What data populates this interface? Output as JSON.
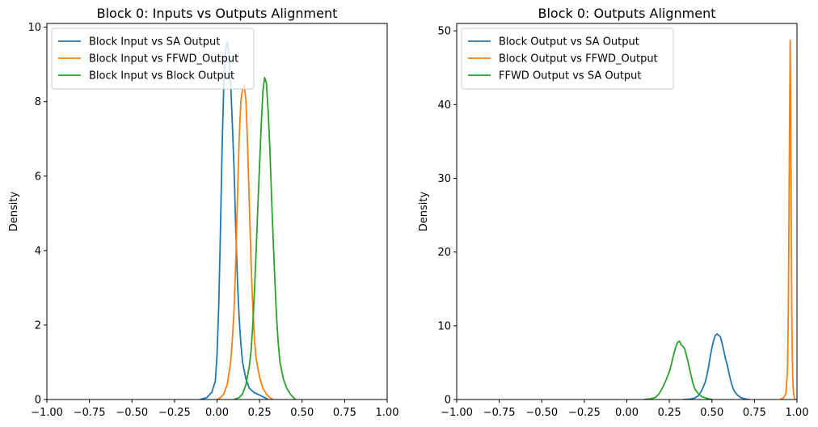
{
  "chart_data": [
    {
      "type": "line",
      "subtype": "kde-density",
      "title": "Block 0: Inputs vs Outputs Alignment",
      "xlabel": "",
      "ylabel": "Density",
      "xlim": [
        -1.0,
        1.0
      ],
      "ylim": [
        0,
        10.1
      ],
      "xticks": [
        "−1.00",
        "−0.75",
        "−0.50",
        "−0.25",
        "0.00",
        "0.25",
        "0.50",
        "0.75",
        "1.00"
      ],
      "xtick_values": [
        -1.0,
        -0.75,
        -0.5,
        -0.25,
        0.0,
        0.25,
        0.5,
        0.75,
        1.0
      ],
      "yticks": [
        "0",
        "2",
        "4",
        "6",
        "8",
        "10"
      ],
      "ytick_values": [
        0,
        2,
        4,
        6,
        8,
        10
      ],
      "grid": false,
      "legend_position": "top-left",
      "series": [
        {
          "name": "Block Input vs SA Output",
          "color": "#1f77b4",
          "points": [
            [
              -0.1,
              0
            ],
            [
              -0.06,
              0.05
            ],
            [
              -0.03,
              0.2
            ],
            [
              -0.01,
              0.5
            ],
            [
              0.0,
              1.2
            ],
            [
              0.01,
              2.5
            ],
            [
              0.02,
              4.5
            ],
            [
              0.03,
              6.8
            ],
            [
              0.04,
              8.5
            ],
            [
              0.05,
              9.4
            ],
            [
              0.06,
              9.6
            ],
            [
              0.07,
              9.3
            ],
            [
              0.08,
              8.5
            ],
            [
              0.09,
              7.4
            ],
            [
              0.1,
              6.2
            ],
            [
              0.11,
              4.6
            ],
            [
              0.12,
              3.2
            ],
            [
              0.13,
              2.2
            ],
            [
              0.14,
              1.5
            ],
            [
              0.15,
              1.0
            ],
            [
              0.17,
              0.55
            ],
            [
              0.19,
              0.3
            ],
            [
              0.22,
              0.18
            ],
            [
              0.25,
              0.12
            ],
            [
              0.28,
              0.05
            ],
            [
              0.3,
              0
            ]
          ]
        },
        {
          "name": "Block Input vs FFWD_Output",
          "color": "#ff7f0e",
          "points": [
            [
              0.0,
              0
            ],
            [
              0.02,
              0.05
            ],
            [
              0.04,
              0.15
            ],
            [
              0.06,
              0.4
            ],
            [
              0.08,
              1.0
            ],
            [
              0.09,
              1.6
            ],
            [
              0.1,
              2.4
            ],
            [
              0.11,
              3.7
            ],
            [
              0.12,
              5.4
            ],
            [
              0.13,
              7.0
            ],
            [
              0.14,
              8.0
            ],
            [
              0.15,
              8.35
            ],
            [
              0.16,
              8.45
            ],
            [
              0.17,
              8.0
            ],
            [
              0.18,
              6.8
            ],
            [
              0.19,
              5.2
            ],
            [
              0.2,
              3.7
            ],
            [
              0.21,
              2.5
            ],
            [
              0.22,
              1.6
            ],
            [
              0.23,
              1.1
            ],
            [
              0.25,
              0.6
            ],
            [
              0.27,
              0.3
            ],
            [
              0.29,
              0.15
            ],
            [
              0.31,
              0.05
            ],
            [
              0.33,
              0
            ]
          ]
        },
        {
          "name": "Block Input vs Block Output",
          "color": "#2ca02c",
          "points": [
            [
              0.1,
              0
            ],
            [
              0.13,
              0.05
            ],
            [
              0.15,
              0.15
            ],
            [
              0.17,
              0.4
            ],
            [
              0.19,
              0.9
            ],
            [
              0.2,
              1.3
            ],
            [
              0.21,
              2.0
            ],
            [
              0.22,
              2.9
            ],
            [
              0.23,
              4.0
            ],
            [
              0.24,
              5.2
            ],
            [
              0.25,
              6.3
            ],
            [
              0.26,
              7.4
            ],
            [
              0.27,
              8.3
            ],
            [
              0.28,
              8.65
            ],
            [
              0.29,
              8.5
            ],
            [
              0.3,
              7.8
            ],
            [
              0.31,
              6.8
            ],
            [
              0.32,
              5.5
            ],
            [
              0.33,
              4.3
            ],
            [
              0.34,
              3.2
            ],
            [
              0.35,
              2.2
            ],
            [
              0.36,
              1.5
            ],
            [
              0.37,
              1.0
            ],
            [
              0.39,
              0.55
            ],
            [
              0.41,
              0.3
            ],
            [
              0.43,
              0.15
            ],
            [
              0.45,
              0.05
            ],
            [
              0.46,
              0
            ]
          ]
        }
      ]
    },
    {
      "type": "line",
      "subtype": "kde-density",
      "title": "Block 0: Outputs Alignment",
      "xlabel": "",
      "ylabel": "Density",
      "xlim": [
        -1.0,
        1.0
      ],
      "ylim": [
        0,
        51
      ],
      "xticks": [
        "−1.00",
        "−0.75",
        "−0.50",
        "−0.25",
        "0.00",
        "0.25",
        "0.50",
        "0.75",
        "1.00"
      ],
      "xtick_values": [
        -1.0,
        -0.75,
        -0.5,
        -0.25,
        0.0,
        0.25,
        0.5,
        0.75,
        1.0
      ],
      "yticks": [
        "0",
        "10",
        "20",
        "30",
        "40",
        "50"
      ],
      "ytick_values": [
        0,
        10,
        20,
        30,
        40,
        50
      ],
      "grid": false,
      "legend_position": "top-left",
      "series": [
        {
          "name": "Block Output vs SA Output",
          "color": "#1f77b4",
          "points": [
            [
              0.33,
              0
            ],
            [
              0.37,
              0.05
            ],
            [
              0.4,
              0.2
            ],
            [
              0.42,
              0.5
            ],
            [
              0.44,
              1.2
            ],
            [
              0.46,
              2.3
            ],
            [
              0.47,
              3.2
            ],
            [
              0.48,
              4.4
            ],
            [
              0.49,
              5.8
            ],
            [
              0.5,
              7.0
            ],
            [
              0.51,
              8.0
            ],
            [
              0.52,
              8.7
            ],
            [
              0.53,
              8.9
            ],
            [
              0.54,
              8.7
            ],
            [
              0.55,
              8.5
            ],
            [
              0.56,
              7.6
            ],
            [
              0.57,
              6.6
            ],
            [
              0.58,
              5.5
            ],
            [
              0.59,
              4.7
            ],
            [
              0.6,
              3.6
            ],
            [
              0.61,
              2.6
            ],
            [
              0.62,
              1.8
            ],
            [
              0.63,
              1.2
            ],
            [
              0.65,
              0.6
            ],
            [
              0.67,
              0.25
            ],
            [
              0.7,
              0.05
            ],
            [
              0.72,
              0
            ]
          ]
        },
        {
          "name": "Block Output vs FFWD_Output",
          "color": "#ff7f0e",
          "points": [
            [
              0.9,
              0
            ],
            [
              0.92,
              0.2
            ],
            [
              0.935,
              0.8
            ],
            [
              0.94,
              2.5
            ],
            [
              0.945,
              4.5
            ],
            [
              0.95,
              14
            ],
            [
              0.955,
              33
            ],
            [
              0.96,
              48.7
            ],
            [
              0.963,
              40
            ],
            [
              0.966,
              25
            ],
            [
              0.97,
              10
            ],
            [
              0.975,
              3
            ],
            [
              0.98,
              0.8
            ],
            [
              0.985,
              0.2
            ],
            [
              0.99,
              0
            ]
          ]
        },
        {
          "name": "FFWD Output vs SA Output",
          "color": "#2ca02c",
          "points": [
            [
              0.1,
              0
            ],
            [
              0.14,
              0.1
            ],
            [
              0.17,
              0.3
            ],
            [
              0.19,
              0.8
            ],
            [
              0.21,
              1.6
            ],
            [
              0.23,
              2.6
            ],
            [
              0.25,
              3.8
            ],
            [
              0.26,
              4.6
            ],
            [
              0.27,
              5.6
            ],
            [
              0.28,
              6.5
            ],
            [
              0.29,
              7.3
            ],
            [
              0.3,
              7.8
            ],
            [
              0.31,
              7.9
            ],
            [
              0.32,
              7.4
            ],
            [
              0.33,
              7.2
            ],
            [
              0.34,
              6.9
            ],
            [
              0.35,
              6.0
            ],
            [
              0.36,
              5.1
            ],
            [
              0.37,
              4.0
            ],
            [
              0.38,
              3.0
            ],
            [
              0.39,
              2.1
            ],
            [
              0.4,
              1.4
            ],
            [
              0.42,
              0.8
            ],
            [
              0.44,
              0.4
            ],
            [
              0.47,
              0.15
            ],
            [
              0.5,
              0
            ]
          ]
        }
      ]
    }
  ]
}
